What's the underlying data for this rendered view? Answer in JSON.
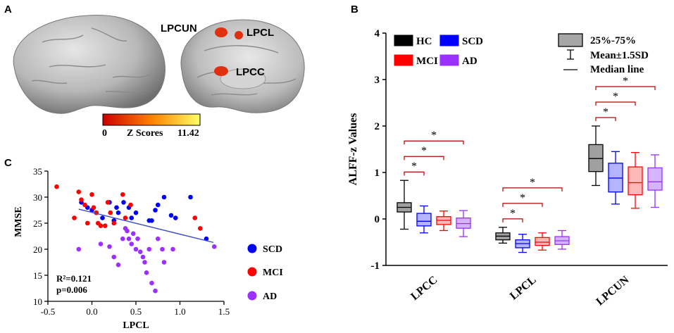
{
  "panels": {
    "a": "A",
    "b": "B",
    "c": "C"
  },
  "brain": {
    "regions": [
      "LPCUN",
      "LPCL",
      "LPCC"
    ],
    "colorbar": {
      "min": "0",
      "label": "Z Scores",
      "max": "11.42"
    }
  },
  "colors": {
    "HC": "#000000",
    "SCD": "#0000ff",
    "MCI": "#ff0000",
    "AD": "#9b30ff"
  },
  "chart_data": [
    {
      "type": "box",
      "panel": "B",
      "ylabel": "ALFF-z Values",
      "ylim": [
        -1,
        4
      ],
      "yticks": [
        "-1",
        "0",
        "1",
        "2",
        "3",
        "4"
      ],
      "categories": [
        "LPCC",
        "LPCL",
        "LPCUN"
      ],
      "group_legend": [
        "HC",
        "SCD",
        "MCI",
        "AD"
      ],
      "box_legend": [
        "25%-75%",
        "Mean±1.5SD",
        "Median line"
      ],
      "sig_mark": "*",
      "groups": [
        {
          "region": "LPCC",
          "boxes": [
            {
              "group": "HC",
              "whisker_low": -0.22,
              "q1": 0.15,
              "median": 0.25,
              "q3": 0.35,
              "whisker_high": 0.83
            },
            {
              "group": "SCD",
              "whisker_low": -0.3,
              "q1": -0.15,
              "median": -0.05,
              "q3": 0.12,
              "whisker_high": 0.28
            },
            {
              "group": "MCI",
              "whisker_low": -0.25,
              "q1": -0.12,
              "median": -0.03,
              "q3": 0.05,
              "whisker_high": 0.17
            },
            {
              "group": "AD",
              "whisker_low": -0.38,
              "q1": -0.2,
              "median": -0.1,
              "q3": 0.02,
              "whisker_high": 0.18
            }
          ],
          "significance": [
            "HC-SCD",
            "HC-MCI",
            "HC-AD"
          ]
        },
        {
          "region": "LPCL",
          "boxes": [
            {
              "group": "HC",
              "whisker_low": -0.52,
              "q1": -0.45,
              "median": -0.37,
              "q3": -0.3,
              "whisker_high": -0.18
            },
            {
              "group": "SCD",
              "whisker_low": -0.72,
              "q1": -0.62,
              "median": -0.53,
              "q3": -0.45,
              "whisker_high": -0.33
            },
            {
              "group": "MCI",
              "whisker_low": -0.67,
              "q1": -0.57,
              "median": -0.5,
              "q3": -0.4,
              "whisker_high": -0.3
            },
            {
              "group": "AD",
              "whisker_low": -0.65,
              "q1": -0.55,
              "median": -0.47,
              "q3": -0.38,
              "whisker_high": -0.25
            }
          ],
          "significance": [
            "HC-SCD",
            "HC-MCI",
            "HC-AD"
          ]
        },
        {
          "region": "LPCUN",
          "boxes": [
            {
              "group": "HC",
              "whisker_low": 0.72,
              "q1": 1.02,
              "median": 1.3,
              "q3": 1.6,
              "whisker_high": 2.0
            },
            {
              "group": "SCD",
              "whisker_low": 0.32,
              "q1": 0.58,
              "median": 0.88,
              "q3": 1.2,
              "whisker_high": 1.45
            },
            {
              "group": "MCI",
              "whisker_low": 0.23,
              "q1": 0.52,
              "median": 0.78,
              "q3": 1.12,
              "whisker_high": 1.43
            },
            {
              "group": "AD",
              "whisker_low": 0.25,
              "q1": 0.62,
              "median": 0.8,
              "q3": 1.1,
              "whisker_high": 1.38
            }
          ],
          "significance": [
            "HC-SCD",
            "HC-MCI",
            "HC-AD"
          ]
        }
      ]
    },
    {
      "type": "scatter",
      "panel": "C",
      "xlabel": "LPCL",
      "ylabel": "MMSE",
      "xlim": [
        -0.5,
        1.5
      ],
      "ylim": [
        10,
        35
      ],
      "xticks": [
        "-0.5",
        "0.0",
        "0.5",
        "1.0",
        "1.5"
      ],
      "yticks": [
        "10",
        "15",
        "20",
        "25",
        "30",
        "35"
      ],
      "stats": [
        "R²=0.121",
        "p=0.006"
      ],
      "fit_line": {
        "x": [
          -0.15,
          1.38
        ],
        "y": [
          27.7,
          21.3
        ]
      },
      "series": [
        {
          "name": "SCD",
          "points": [
            [
              -0.12,
              29
            ],
            [
              -0.05,
              28
            ],
            [
              0.0,
              27.5
            ],
            [
              0.05,
              27
            ],
            [
              0.12,
              26
            ],
            [
              0.2,
              29
            ],
            [
              0.25,
              25.5
            ],
            [
              0.28,
              28
            ],
            [
              0.3,
              27
            ],
            [
              0.36,
              29
            ],
            [
              0.42,
              28
            ],
            [
              0.45,
              26
            ],
            [
              0.5,
              27
            ],
            [
              0.65,
              25.5
            ],
            [
              0.68,
              25.5
            ],
            [
              0.72,
              27.5
            ],
            [
              0.75,
              28.5
            ],
            [
              0.82,
              30
            ],
            [
              0.9,
              26.5
            ],
            [
              0.95,
              26
            ],
            [
              1.12,
              30
            ],
            [
              1.3,
              22
            ]
          ]
        },
        {
          "name": "MCI",
          "points": [
            [
              -0.4,
              32
            ],
            [
              -0.2,
              26
            ],
            [
              -0.15,
              31
            ],
            [
              -0.12,
              29.5
            ],
            [
              -0.08,
              28.5
            ],
            [
              -0.05,
              25
            ],
            [
              0.0,
              30.5
            ],
            [
              0.02,
              28
            ],
            [
              0.05,
              27
            ],
            [
              0.07,
              25
            ],
            [
              0.1,
              24.5
            ],
            [
              0.15,
              24.5
            ],
            [
              0.18,
              29
            ],
            [
              0.21,
              27
            ],
            [
              0.25,
              25
            ],
            [
              0.35,
              30.5
            ],
            [
              0.38,
              26
            ],
            [
              0.44,
              28.5
            ],
            [
              1.17,
              26
            ],
            [
              1.23,
              24
            ]
          ]
        },
        {
          "name": "AD",
          "points": [
            [
              -0.15,
              20
            ],
            [
              0.1,
              21
            ],
            [
              0.2,
              20.5
            ],
            [
              0.25,
              18.5
            ],
            [
              0.3,
              17
            ],
            [
              0.35,
              22
            ],
            [
              0.38,
              24
            ],
            [
              0.4,
              23.5
            ],
            [
              0.42,
              22
            ],
            [
              0.45,
              21
            ],
            [
              0.47,
              23
            ],
            [
              0.5,
              20
            ],
            [
              0.52,
              22
            ],
            [
              0.55,
              19.5
            ],
            [
              0.58,
              18.5
            ],
            [
              0.6,
              17.5
            ],
            [
              0.62,
              15.5
            ],
            [
              0.65,
              20
            ],
            [
              0.68,
              13.5
            ],
            [
              0.72,
              12
            ],
            [
              0.75,
              22
            ],
            [
              0.8,
              20
            ],
            [
              0.82,
              17.5
            ],
            [
              0.92,
              20
            ],
            [
              1.39,
              20.5
            ]
          ]
        }
      ]
    }
  ]
}
